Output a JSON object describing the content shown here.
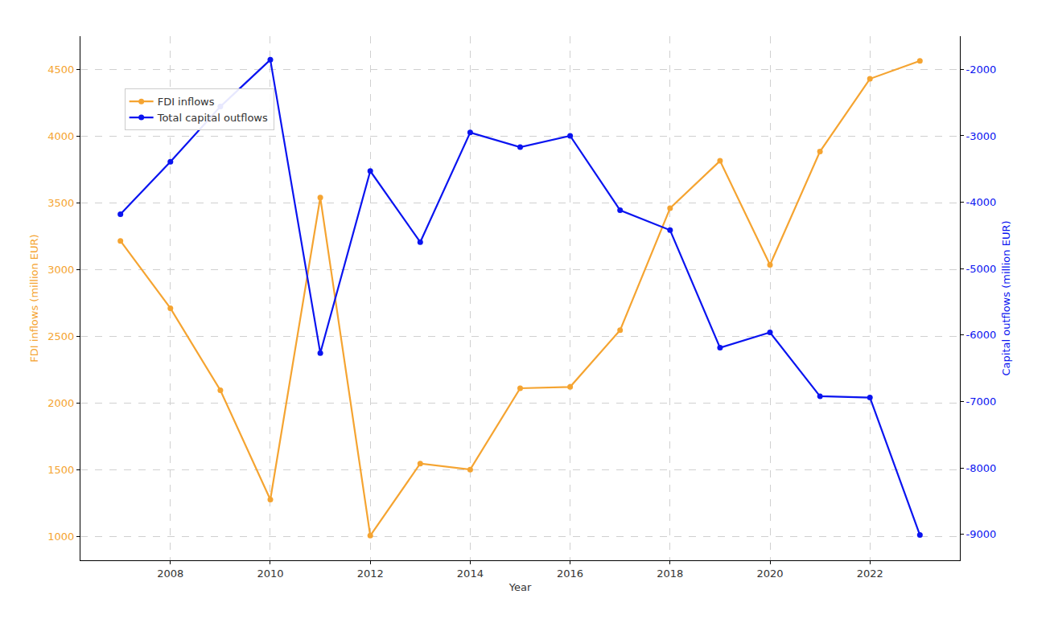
{
  "chart_data": {
    "type": "line",
    "x_label": "Year",
    "y_label": "FDI inflows (million EUR)",
    "y2_label": "Capital outflows (million EUR)",
    "x": [
      2007,
      2008,
      2009,
      2010,
      2011,
      2012,
      2013,
      2014,
      2015,
      2016,
      2017,
      2018,
      2019,
      2020,
      2021,
      2022,
      2023
    ],
    "series": [
      {
        "name": "FDI inflows",
        "color": "#f5a431",
        "marker": "circle",
        "line_style": "solid",
        "axis": "y",
        "values": [
          3215,
          2710,
          2095,
          1275,
          3540,
          1005,
          1545,
          1500,
          2110,
          2120,
          2545,
          3460,
          3815,
          3035,
          3885,
          4430,
          4565
        ]
      },
      {
        "name": "Total capital outflows",
        "color": "#0a14f0",
        "marker": "circle",
        "line_style": "solid",
        "axis": "y2",
        "values": [
          -4180,
          -3390,
          -2560,
          -1855,
          -6270,
          -3530,
          -4600,
          -2950,
          -3170,
          -3000,
          -4120,
          -4420,
          -6190,
          -5960,
          -6920,
          -6940,
          -9010
        ]
      }
    ],
    "xlim": [
      2006.2,
      2023.8
    ],
    "xticks": [
      2008,
      2010,
      2012,
      2014,
      2016,
      2018,
      2020,
      2022
    ],
    "ylim": [
      820,
      4750
    ],
    "yticks": [
      1000,
      1500,
      2000,
      2500,
      3000,
      3500,
      4000,
      4500
    ],
    "y2lim": [
      -9390,
      -1500
    ],
    "y2ticks": [
      -9000,
      -8000,
      -7000,
      -6000,
      -5000,
      -4000,
      -3000,
      -2000
    ],
    "grid": true,
    "legend": "upper left"
  }
}
